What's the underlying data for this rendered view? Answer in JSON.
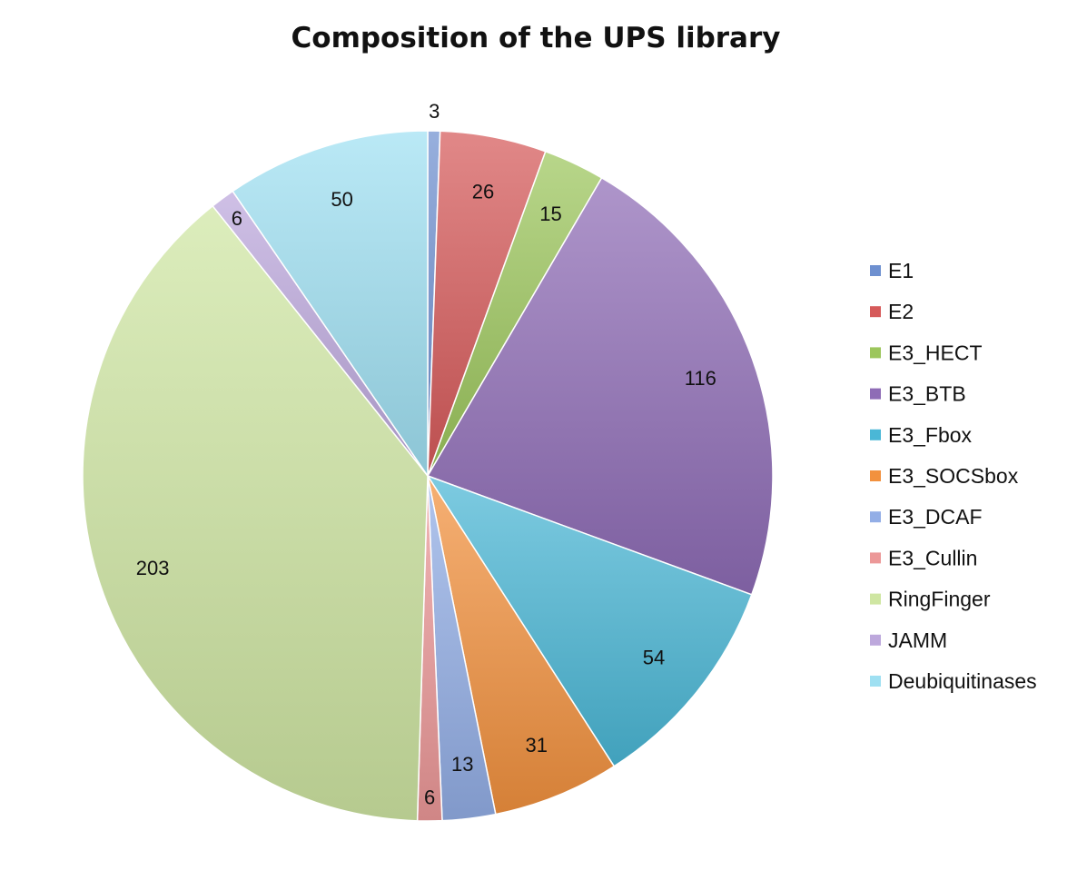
{
  "chart_data": {
    "type": "pie",
    "title": "Composition of the UPS library",
    "legend_position": "right",
    "start_angle_deg": 0,
    "direction": "clockwise",
    "slices": [
      {
        "label": "E1",
        "value": 3,
        "color": "#6e90d0"
      },
      {
        "label": "E2",
        "value": 26,
        "color": "#d65a5a"
      },
      {
        "label": "E3_HECT",
        "value": 15,
        "color": "#9cc65c"
      },
      {
        "label": "E3_BTB",
        "value": 116,
        "color": "#8e6cb6"
      },
      {
        "label": "E3_Fbox",
        "value": 54,
        "color": "#4ab7d6"
      },
      {
        "label": "E3_SOCSbox",
        "value": 31,
        "color": "#f2913e"
      },
      {
        "label": "E3_DCAF",
        "value": 13,
        "color": "#93aee6"
      },
      {
        "label": "E3_Cullin",
        "value": 6,
        "color": "#ec9898"
      },
      {
        "label": "RingFinger",
        "value": 203,
        "color": "#cfe6a2"
      },
      {
        "label": "JAMM",
        "value": 6,
        "color": "#bda8dc"
      },
      {
        "label": "Deubiquitinases",
        "value": 50,
        "color": "#9fe0f2"
      }
    ]
  }
}
